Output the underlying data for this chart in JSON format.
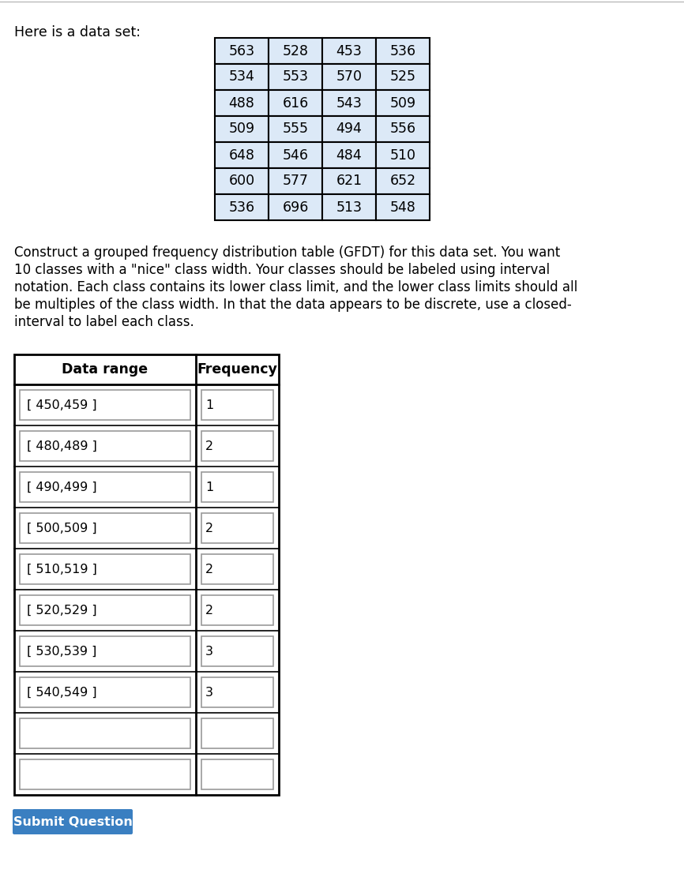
{
  "title_text": "Here is a data set:",
  "data_table": [
    [
      563,
      528,
      453,
      536
    ],
    [
      534,
      553,
      570,
      525
    ],
    [
      488,
      616,
      543,
      509
    ],
    [
      509,
      555,
      494,
      556
    ],
    [
      648,
      546,
      484,
      510
    ],
    [
      600,
      577,
      621,
      652
    ],
    [
      536,
      696,
      513,
      548
    ]
  ],
  "description_lines": [
    "Construct a grouped frequency distribution table (GFDT) for this data set. You want",
    "10 classes with a \"nice\" class width. Your classes should be labeled using interval",
    "notation. Each class contains its lower class limit, and the lower class limits should all",
    "be multiples of the class width. In that the data appears to be discrete, use a closed-",
    "interval to label each class."
  ],
  "gfdt_header": [
    "Data range",
    "Frequency"
  ],
  "gfdt_rows": [
    {
      "range": "[ 450,459 ]",
      "freq": "1"
    },
    {
      "range": "[ 480,489 ]",
      "freq": "2"
    },
    {
      "range": "[ 490,499 ]",
      "freq": "1"
    },
    {
      "range": "[ 500,509 ]",
      "freq": "2"
    },
    {
      "range": "[ 510,519 ]",
      "freq": "2"
    },
    {
      "range": "[ 520,529 ]",
      "freq": "2"
    },
    {
      "range": "[ 530,539 ]",
      "freq": "3"
    },
    {
      "range": "[ 540,549 ]",
      "freq": "3"
    },
    {
      "range": "",
      "freq": ""
    },
    {
      "range": "",
      "freq": ""
    }
  ],
  "button_text": "Submit Question",
  "button_bg": "#3a7fc1",
  "button_text_color": "#ffffff",
  "data_table_bg": "#dce9f7",
  "bg_color": "#ffffff",
  "border_color": "#000000",
  "top_border_color": "#cccccc",
  "header_separator": "#888888"
}
